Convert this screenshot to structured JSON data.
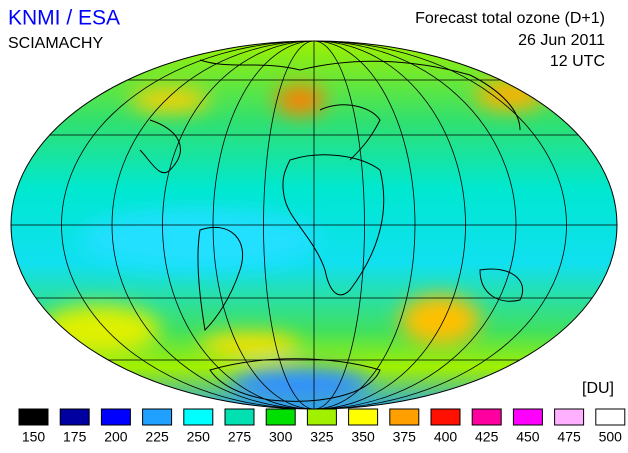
{
  "header": {
    "title": "KNMI / ESA",
    "instrument": "SCIAMACHY",
    "product": "Forecast total ozone (D+1)",
    "date": "26 Jun 2011",
    "time": "12 UTC"
  },
  "legend": {
    "unit": "[DU]",
    "items": [
      {
        "value": 150,
        "color": "#000000"
      },
      {
        "value": 175,
        "color": "#0000a0"
      },
      {
        "value": 200,
        "color": "#0000ff"
      },
      {
        "value": 225,
        "color": "#20a0ff"
      },
      {
        "value": 250,
        "color": "#00ffff"
      },
      {
        "value": 275,
        "color": "#00e0b0"
      },
      {
        "value": 300,
        "color": "#00e000"
      },
      {
        "value": 325,
        "color": "#a0f000"
      },
      {
        "value": 350,
        "color": "#ffff00"
      },
      {
        "value": 375,
        "color": "#ffa000"
      },
      {
        "value": 400,
        "color": "#ff1000"
      },
      {
        "value": 425,
        "color": "#ff00a0"
      },
      {
        "value": 450,
        "color": "#ff00ff"
      },
      {
        "value": 475,
        "color": "#ffb0ff"
      },
      {
        "value": 500,
        "color": "#ffffff"
      }
    ]
  }
}
